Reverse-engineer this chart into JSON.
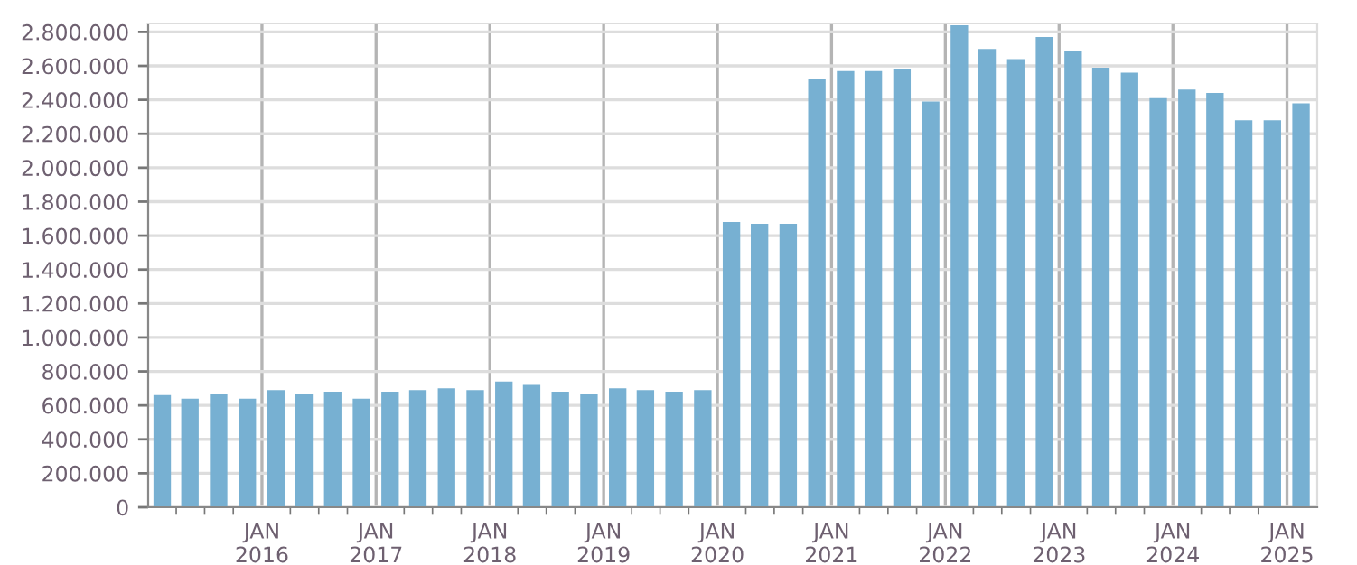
{
  "chart_data": {
    "type": "bar",
    "x": [
      "2015-02-15",
      "2015-05-15",
      "2015-08-15",
      "2015-11-15",
      "2016-02-15",
      "2016-05-15",
      "2016-08-15",
      "2016-11-15",
      "2017-02-15",
      "2017-05-15",
      "2017-08-15",
      "2017-11-15",
      "2018-02-15",
      "2018-05-15",
      "2018-08-15",
      "2018-11-15",
      "2019-02-15",
      "2019-05-15",
      "2019-08-15",
      "2019-11-15",
      "2020-02-15",
      "2020-05-15",
      "2020-08-15",
      "2020-11-15",
      "2021-02-15",
      "2021-05-15",
      "2021-08-15",
      "2021-11-15",
      "2022-02-15",
      "2022-05-15",
      "2022-08-15",
      "2022-11-15",
      "2023-02-15",
      "2023-05-15",
      "2023-08-15",
      "2023-11-15",
      "2024-02-15",
      "2024-05-15",
      "2024-08-15",
      "2024-11-15",
      "2025-02-15"
    ],
    "series": [
      {
        "color": "#77b0d2",
        "values": [
          660000,
          640000,
          670000,
          640000,
          690000,
          670000,
          680000,
          640000,
          680000,
          690000,
          700000,
          690000,
          740000,
          720000,
          680000,
          670000,
          700000,
          690000,
          680000,
          690000,
          1680000,
          1670000,
          1670000,
          2520000,
          2570000,
          2570000,
          2580000,
          2390000,
          2840000,
          2700000,
          2640000,
          2770000,
          2690000,
          2590000,
          2560000,
          2410000,
          2460000,
          2440000,
          2280000,
          2280000,
          2380000
        ]
      }
    ],
    "xlim": [
      "2015-01-01",
      "2025-04-08"
    ],
    "xticks": [
      {
        "value": "2015-04-01",
        "label": null
      },
      {
        "value": "2015-07-01",
        "label": null
      },
      {
        "value": "2015-10-01",
        "label": null
      },
      {
        "value": "2016-01-01",
        "label": "JAN\n2016"
      },
      {
        "value": "2016-04-01",
        "label": null
      },
      {
        "value": "2016-07-01",
        "label": null
      },
      {
        "value": "2016-10-01",
        "label": null
      },
      {
        "value": "2017-01-01",
        "label": "JAN\n2017"
      },
      {
        "value": "2017-04-01",
        "label": null
      },
      {
        "value": "2017-07-01",
        "label": null
      },
      {
        "value": "2017-10-01",
        "label": null
      },
      {
        "value": "2018-01-01",
        "label": "JAN\n2018"
      },
      {
        "value": "2018-04-01",
        "label": null
      },
      {
        "value": "2018-07-01",
        "label": null
      },
      {
        "value": "2018-10-01",
        "label": null
      },
      {
        "value": "2019-01-01",
        "label": "JAN\n2019"
      },
      {
        "value": "2019-04-01",
        "label": null
      },
      {
        "value": "2019-07-01",
        "label": null
      },
      {
        "value": "2019-10-01",
        "label": null
      },
      {
        "value": "2020-01-01",
        "label": "JAN\n2020"
      },
      {
        "value": "2020-04-01",
        "label": null
      },
      {
        "value": "2020-07-01",
        "label": null
      },
      {
        "value": "2020-10-01",
        "label": null
      },
      {
        "value": "2021-01-01",
        "label": "JAN\n2021"
      },
      {
        "value": "2021-04-01",
        "label": null
      },
      {
        "value": "2021-07-01",
        "label": null
      },
      {
        "value": "2021-10-01",
        "label": null
      },
      {
        "value": "2022-01-01",
        "label": "JAN\n2022"
      },
      {
        "value": "2022-04-01",
        "label": null
      },
      {
        "value": "2022-07-01",
        "label": null
      },
      {
        "value": "2022-10-01",
        "label": null
      },
      {
        "value": "2023-01-01",
        "label": "JAN\n2023"
      },
      {
        "value": "2023-04-01",
        "label": null
      },
      {
        "value": "2023-07-01",
        "label": null
      },
      {
        "value": "2023-10-01",
        "label": null
      },
      {
        "value": "2024-01-01",
        "label": "JAN\n2024"
      },
      {
        "value": "2024-04-01",
        "label": null
      },
      {
        "value": "2024-07-01",
        "label": null
      },
      {
        "value": "2024-10-01",
        "label": null
      },
      {
        "value": "2025-01-01",
        "label": "JAN\n2025"
      }
    ],
    "ylim": [
      0,
      2850000
    ],
    "yticks": [
      {
        "value": 0,
        "label": "0"
      },
      {
        "value": 200000,
        "label": "200.000"
      },
      {
        "value": 400000,
        "label": "400.000"
      },
      {
        "value": 600000,
        "label": "600.000"
      },
      {
        "value": 800000,
        "label": "800.000"
      },
      {
        "value": 1000000,
        "label": "1.000.000"
      },
      {
        "value": 1200000,
        "label": "1.200.000"
      },
      {
        "value": 1400000,
        "label": "1.400.000"
      },
      {
        "value": 1600000,
        "label": "1.600.000"
      },
      {
        "value": 1800000,
        "label": "1.800.000"
      },
      {
        "value": 2000000,
        "label": "2.000.000"
      },
      {
        "value": 2200000,
        "label": "2.200.000"
      },
      {
        "value": 2400000,
        "label": "2.400.000"
      },
      {
        "value": 2600000,
        "label": "2.600.000"
      },
      {
        "value": 2800000,
        "label": "2.800.000"
      }
    ],
    "grid": true
  }
}
